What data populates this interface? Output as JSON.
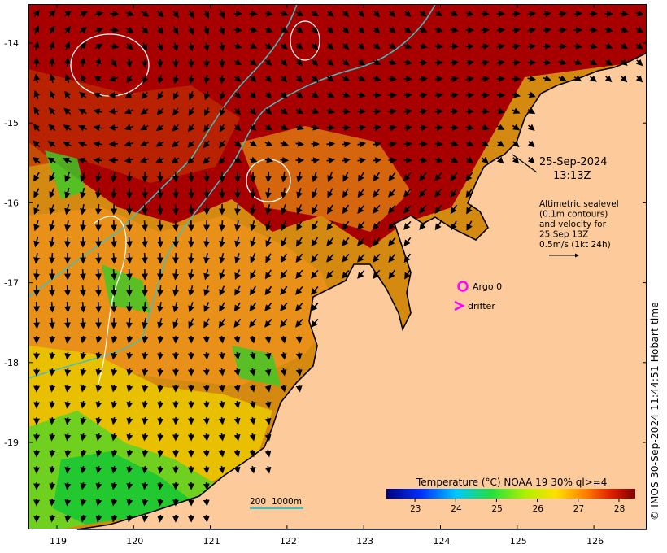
{
  "map": {
    "date_line1": "25-Sep-2024",
    "date_line2": "13:13Z",
    "legend_lines": [
      "Altimetric sealevel",
      "(0.1m contours)",
      "and velocity for",
      "25 Sep 13Z",
      "0.5m/s (1kt 24h)"
    ],
    "argo_label": "Argo 0",
    "drifter_label": "drifter",
    "marker_color": "#ff00ff",
    "depth_labels": [
      "200",
      "1000m"
    ],
    "depth_color": "#40c0c0",
    "colorbar": {
      "title": "Temperature (°C) NOAA 19 30% ql>=4",
      "ticks": [
        "23",
        "24",
        "25",
        "26",
        "27",
        "28"
      ],
      "range": [
        22.3,
        28.4
      ]
    },
    "lat_ticks": [
      "-14",
      "-15",
      "-16",
      "-17",
      "-18",
      "-19"
    ],
    "lon_ticks": [
      "119",
      "120",
      "121",
      "122",
      "123",
      "124",
      "125",
      "126"
    ],
    "credit": "© IMOS 30-Sep-2024 11:44:51 Hobart time",
    "colors": {
      "land": "#fdcb9b",
      "warm": "#a80000",
      "cool": "#22c830"
    }
  }
}
